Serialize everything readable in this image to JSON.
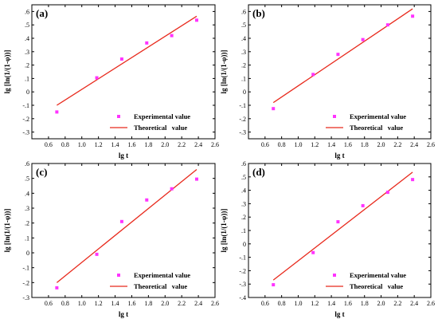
{
  "colors": {
    "experimental": "#ff33ff",
    "theoretical": "#e8291c",
    "axis": "#000000"
  },
  "chart_data": [
    {
      "type": "scatter",
      "panel_label": "(a)",
      "xlabel": "lg t",
      "ylabel": "lg [ln(1/(1-φ))]",
      "xlim": [
        0.4,
        2.6
      ],
      "ylim": [
        -0.35,
        0.65
      ],
      "xticks": [
        0.6,
        0.8,
        1.0,
        1.2,
        1.4,
        1.6,
        1.8,
        2.0,
        2.2,
        2.4,
        2.6
      ],
      "yticks": [
        -0.3,
        -0.2,
        -0.1,
        0.0,
        0.1,
        0.2,
        0.3,
        0.4,
        0.5,
        0.6
      ],
      "legend_position": "bottom-right",
      "series": [
        {
          "name": "Experimental value",
          "kind": "scatter",
          "x": [
            0.7,
            1.18,
            1.48,
            1.78,
            2.08,
            2.38
          ],
          "y": [
            -0.15,
            0.105,
            0.245,
            0.365,
            0.42,
            0.535
          ]
        },
        {
          "name": "Theoretical   value",
          "kind": "line",
          "x": [
            0.7,
            2.38
          ],
          "y": [
            -0.1,
            0.565
          ]
        }
      ]
    },
    {
      "type": "scatter",
      "panel_label": "(b)",
      "xlabel": "lg t",
      "ylabel": "lg [ln(1/(1-φ))]",
      "xlim": [
        0.4,
        2.6
      ],
      "ylim": [
        -0.35,
        0.65
      ],
      "xticks": [
        0.6,
        0.8,
        1.0,
        1.2,
        1.4,
        1.6,
        1.8,
        2.0,
        2.2,
        2.4,
        2.6
      ],
      "yticks": [
        -0.3,
        -0.2,
        -0.1,
        0.0,
        0.1,
        0.2,
        0.3,
        0.4,
        0.5,
        0.6
      ],
      "legend_position": "bottom-right",
      "series": [
        {
          "name": "Experimental value",
          "kind": "scatter",
          "x": [
            0.7,
            1.18,
            1.48,
            1.78,
            2.08,
            2.38
          ],
          "y": [
            -0.125,
            0.13,
            0.28,
            0.39,
            0.5,
            0.565
          ]
        },
        {
          "name": "Theoretical   value",
          "kind": "line",
          "x": [
            0.7,
            2.38
          ],
          "y": [
            -0.08,
            0.62
          ]
        }
      ]
    },
    {
      "type": "scatter",
      "panel_label": "(c)",
      "xlabel": "lg t",
      "ylabel": "lg [ln(1/(1-φ))]",
      "xlim": [
        0.4,
        2.6
      ],
      "ylim": [
        -0.3,
        0.6
      ],
      "xticks": [
        0.6,
        0.8,
        1.0,
        1.2,
        1.4,
        1.6,
        1.8,
        2.0,
        2.2,
        2.4,
        2.6
      ],
      "yticks": [
        -0.3,
        -0.2,
        -0.1,
        0.0,
        0.1,
        0.2,
        0.3,
        0.4,
        0.5,
        0.6
      ],
      "legend_position": "bottom-right",
      "series": [
        {
          "name": "Experimental value",
          "kind": "scatter",
          "x": [
            0.7,
            1.18,
            1.48,
            1.78,
            2.08,
            2.38
          ],
          "y": [
            -0.235,
            -0.01,
            0.21,
            0.355,
            0.43,
            0.495
          ]
        },
        {
          "name": "Theoretical   value",
          "kind": "line",
          "x": [
            0.7,
            2.38
          ],
          "y": [
            -0.2,
            0.56
          ]
        }
      ]
    },
    {
      "type": "scatter",
      "panel_label": "(d)",
      "xlabel": "lg t",
      "ylabel": "lg [ln(1/(1-φ))]",
      "xlim": [
        0.4,
        2.6
      ],
      "ylim": [
        -0.4,
        0.6
      ],
      "xticks": [
        0.6,
        0.8,
        1.0,
        1.2,
        1.4,
        1.6,
        1.8,
        2.0,
        2.2,
        2.4,
        2.6
      ],
      "yticks": [
        -0.4,
        -0.3,
        -0.2,
        -0.1,
        0.0,
        0.1,
        0.2,
        0.3,
        0.4,
        0.5,
        0.6
      ],
      "legend_position": "bottom-right",
      "series": [
        {
          "name": "Experimental value",
          "kind": "scatter",
          "x": [
            0.7,
            1.18,
            1.48,
            1.78,
            2.08,
            2.38
          ],
          "y": [
            -0.305,
            -0.065,
            0.165,
            0.285,
            0.385,
            0.48
          ]
        },
        {
          "name": "Theoretical   value",
          "kind": "line",
          "x": [
            0.7,
            2.38
          ],
          "y": [
            -0.27,
            0.535
          ]
        }
      ]
    }
  ]
}
